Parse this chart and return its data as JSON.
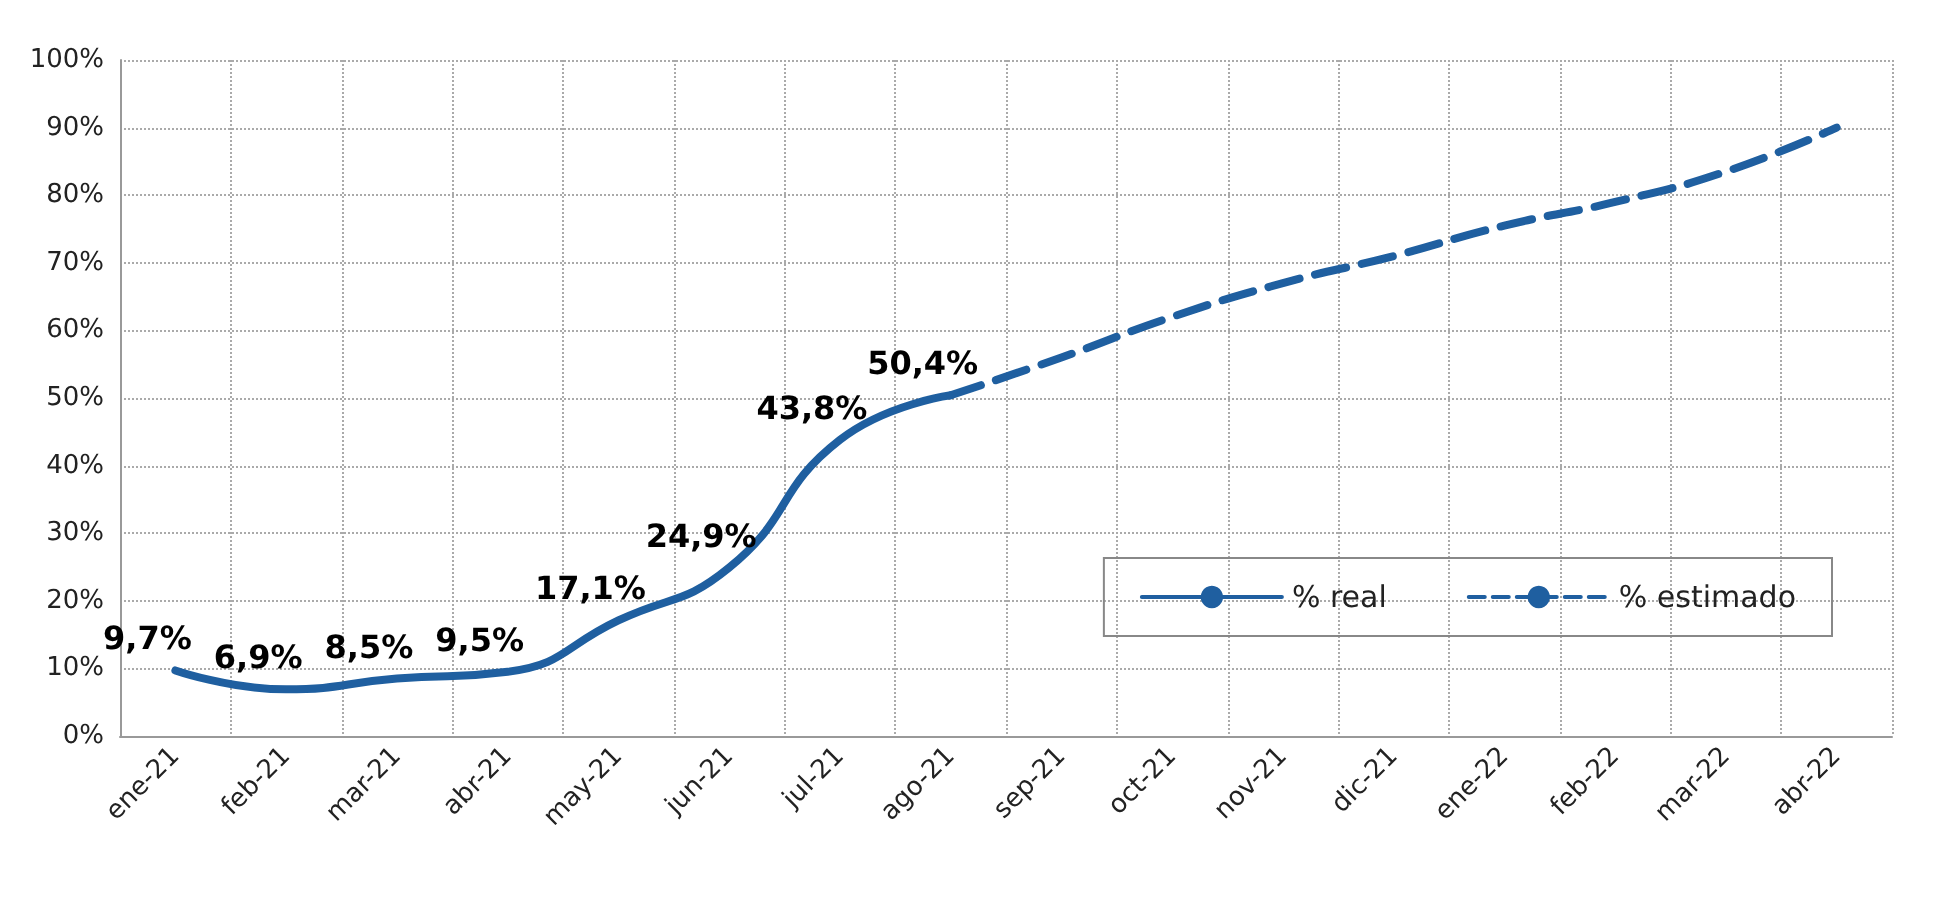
{
  "chart_data": {
    "type": "line",
    "categories": [
      "ene-21",
      "feb-21",
      "mar-21",
      "abr-21",
      "may-21",
      "jun-21",
      "jul-21",
      "ago-21",
      "sep-21",
      "oct-21",
      "nov-21",
      "dic-21",
      "ene-22",
      "feb-22",
      "mar-22",
      "abr-22"
    ],
    "series": [
      {
        "name": "% real",
        "color": "#1f5fa0",
        "line_style": "solid",
        "values": [
          9.7,
          6.9,
          8.5,
          9.5,
          17.1,
          24.9,
          43.8,
          50.4,
          null,
          null,
          null,
          null,
          null,
          null,
          null,
          null
        ],
        "value_labels": [
          "9,7%",
          "6,9%",
          "8,5%",
          "9,5%",
          "17,1%",
          "24,9%",
          "43,8%",
          "50,4%",
          null,
          null,
          null,
          null,
          null,
          null,
          null,
          null
        ]
      },
      {
        "name": "% estimado",
        "color": "#1f5fa0",
        "line_style": "dashed",
        "values": [
          null,
          null,
          null,
          null,
          null,
          null,
          null,
          50.4,
          56,
          62,
          67,
          71,
          75.5,
          79,
          83.5,
          90
        ]
      }
    ],
    "ylim": [
      0,
      100
    ],
    "yticks": [
      {
        "value": 0,
        "label": "0%"
      },
      {
        "value": 10,
        "label": "10%"
      },
      {
        "value": 20,
        "label": "20%"
      },
      {
        "value": 30,
        "label": "30%"
      },
      {
        "value": 40,
        "label": "40%"
      },
      {
        "value": 50,
        "label": "50%"
      },
      {
        "value": 60,
        "label": "60%"
      },
      {
        "value": 70,
        "label": "70%"
      },
      {
        "value": 80,
        "label": "80%"
      },
      {
        "value": 90,
        "label": "90%"
      },
      {
        "value": 100,
        "label": "100%"
      }
    ],
    "grid": true,
    "legend": "right",
    "marker": "none"
  }
}
